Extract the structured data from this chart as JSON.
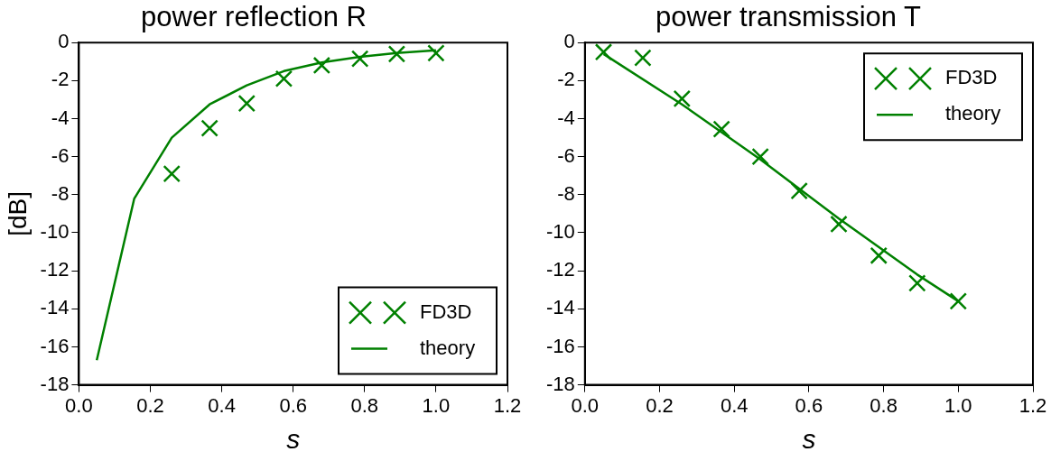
{
  "chart_data": [
    {
      "type": "scatter",
      "title": "power reflection R",
      "xlabel": "s",
      "ylabel": "[dB]",
      "xlim": [
        0,
        1.2
      ],
      "xticks": [
        {
          "value": 0,
          "label": "0.0"
        },
        {
          "value": 0.2,
          "label": "0.2"
        },
        {
          "value": 0.4,
          "label": "0.4"
        },
        {
          "value": 0.6,
          "label": "0.6"
        },
        {
          "value": 0.8,
          "label": "0.8"
        },
        {
          "value": 1.0,
          "label": "1.0"
        },
        {
          "value": 1.2,
          "label": "1.2"
        }
      ],
      "ylim": [
        -18,
        0
      ],
      "yticks": [
        -18,
        -16,
        -14,
        -12,
        -10,
        -8,
        -6,
        -4,
        -2,
        0
      ],
      "grid": false,
      "legend": "bottom right",
      "series": [
        {
          "name": "FD3D",
          "marker": "cross",
          "color": "#008000",
          "x": [
            0.26,
            0.366,
            0.47,
            0.574,
            0.68,
            0.787,
            0.89,
            1.0
          ],
          "values": [
            -6.9,
            -4.5,
            -3.2,
            -1.9,
            -1.2,
            -0.85,
            -0.6,
            -0.55
          ]
        },
        {
          "name": "theory",
          "type": "line",
          "color": "#008000",
          "x": [
            0.05,
            0.155,
            0.26,
            0.366,
            0.47,
            0.574,
            0.68,
            0.787,
            0.89,
            1.0
          ],
          "values": [
            -16.7,
            -8.2,
            -5.0,
            -3.25,
            -2.25,
            -1.5,
            -1.05,
            -0.75,
            -0.55,
            -0.4
          ]
        }
      ]
    },
    {
      "type": "scatter",
      "title": "power transmission T",
      "xlabel": "s",
      "xlim": [
        0,
        1.2
      ],
      "xticks": [
        {
          "value": 0,
          "label": "0.0"
        },
        {
          "value": 0.2,
          "label": "0.2"
        },
        {
          "value": 0.4,
          "label": "0.4"
        },
        {
          "value": 0.6,
          "label": "0.6"
        },
        {
          "value": 0.8,
          "label": "0.8"
        },
        {
          "value": 1.0,
          "label": "1.0"
        },
        {
          "value": 1.2,
          "label": "1.2"
        }
      ],
      "ylim": [
        -18,
        0
      ],
      "yticks": [
        -18,
        -16,
        -14,
        -12,
        -10,
        -8,
        -6,
        -4,
        -2,
        0
      ],
      "grid": false,
      "legend": "top right",
      "series": [
        {
          "name": "FD3D",
          "marker": "cross",
          "color": "#008000",
          "x": [
            0.05,
            0.155,
            0.26,
            0.366,
            0.47,
            0.574,
            0.68,
            0.787,
            0.89,
            1.0
          ],
          "values": [
            -0.5,
            -0.8,
            -2.95,
            -4.55,
            -6.0,
            -7.8,
            -9.55,
            -11.2,
            -12.65,
            -13.6
          ]
        },
        {
          "name": "theory",
          "type": "line",
          "color": "#008000",
          "x": [
            0.05,
            0.26,
            0.47,
            0.68,
            0.89,
            1.0
          ],
          "values": [
            -0.6,
            -3.25,
            -6.15,
            -9.25,
            -12.2,
            -13.6
          ]
        }
      ]
    }
  ]
}
